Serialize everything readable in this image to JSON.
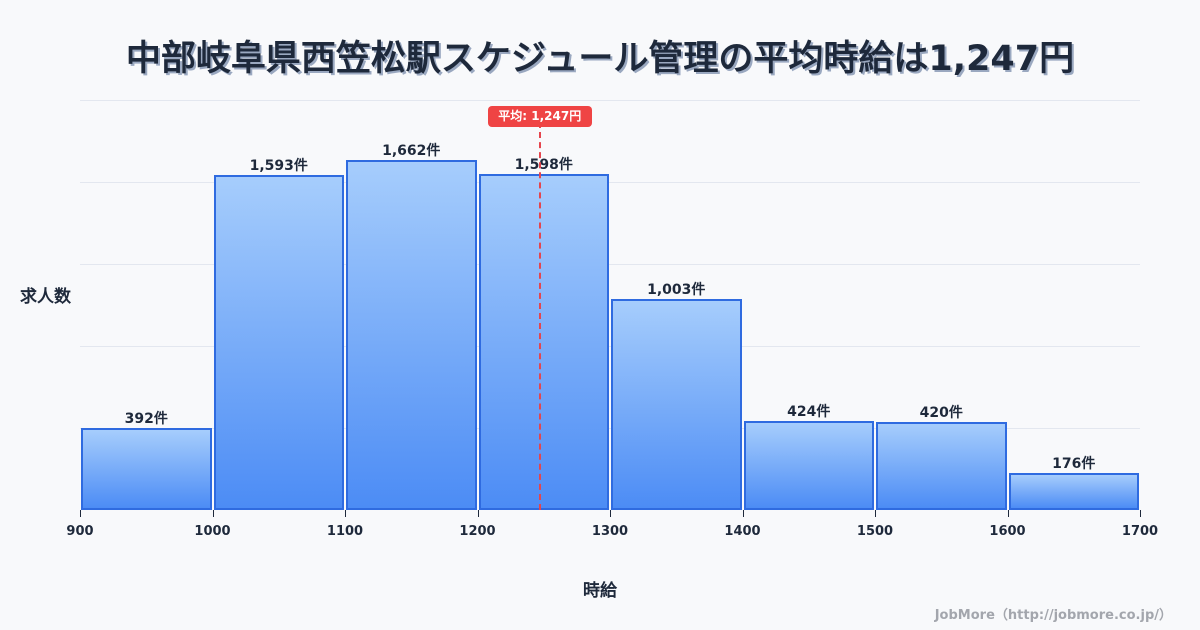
{
  "title": "中部岐阜県西笠松駅スケジュール管理の平均時給は1,247円",
  "chart_data": {
    "type": "bar",
    "subtype": "histogram",
    "title": "中部岐阜県西笠松駅スケジュール管理の平均時給は1,247円",
    "xlabel": "時給",
    "ylabel": "求人数",
    "bins": [
      [
        900,
        1000
      ],
      [
        1000,
        1100
      ],
      [
        1100,
        1200
      ],
      [
        1200,
        1300
      ],
      [
        1300,
        1400
      ],
      [
        1400,
        1500
      ],
      [
        1500,
        1600
      ],
      [
        1600,
        1700
      ]
    ],
    "categories": [
      "900-1000",
      "1000-1100",
      "1100-1200",
      "1200-1300",
      "1300-1400",
      "1400-1500",
      "1500-1600",
      "1600-1700"
    ],
    "values": [
      392,
      1593,
      1662,
      1598,
      1003,
      424,
      420,
      176
    ],
    "value_labels": [
      "392件",
      "1,593件",
      "1,662件",
      "1,598件",
      "1,003件",
      "424件",
      "420件",
      "176件"
    ],
    "x_ticks": [
      "900",
      "1000",
      "1100",
      "1200",
      "1300",
      "1400",
      "1500",
      "1600",
      "1700"
    ],
    "xlim": [
      900,
      1700
    ],
    "ylim": [
      0,
      1950
    ],
    "grid": true,
    "mean_line": {
      "value": 1247,
      "label": "平均: 1,247円",
      "color": "#ef4444"
    },
    "bar_color_top": "#a6cdfc",
    "bar_color_bottom": "#4c8cf5",
    "bar_border": "#2f6be0"
  },
  "footer": "JobMore（http://jobmore.co.jp/）"
}
